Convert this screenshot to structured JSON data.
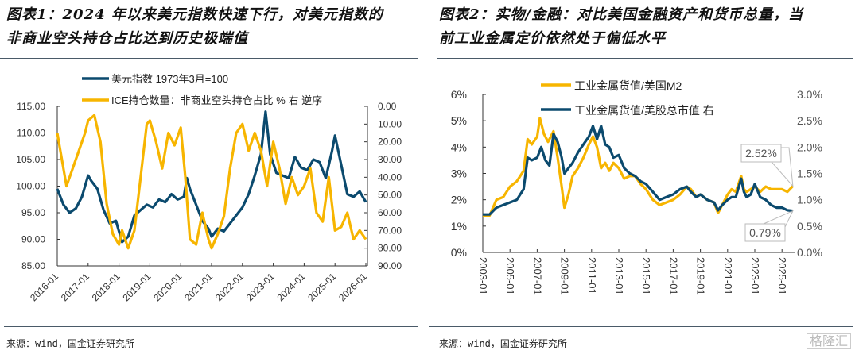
{
  "left_panel": {
    "title_line1": "图表1：2024 年以来美元指数快速下行，对美元指数的",
    "title_line2": "非商业空头持仓占比达到历史极端值",
    "source": "来源：wind，国金证券研究所"
  },
  "right_panel": {
    "title_line1": "图表2：实物/金融：对比美国金融资产和货币总量，当",
    "title_line2": "前工业金属定价依然处于偏低水平",
    "source": "来源：wind，国金证券研究所"
  },
  "watermark": "格隆汇",
  "colors": {
    "navy": "#0b4a6e",
    "gold": "#f7b500",
    "axis": "#333333",
    "callout": "#bbbbbb"
  },
  "chart_data": [
    {
      "type": "line",
      "title": "图表1：2024 年以来美元指数快速下行，对美元指数的非商业空头持仓占比达到历史极端值",
      "x_ticks": [
        "2016-01",
        "2017-01",
        "2018-01",
        "2019-01",
        "2020-01",
        "2021-01",
        "2022-01",
        "2023-01",
        "2024-01",
        "2025-01",
        "2026-01"
      ],
      "x_range": [
        2016.0,
        2026.0
      ],
      "y_left": {
        "range": [
          85,
          115
        ],
        "ticks": [
          "115.00",
          "110.00",
          "105.00",
          "100.00",
          "95.00",
          "90.00",
          "85.00"
        ],
        "tick_values": [
          115,
          110,
          105,
          100,
          95,
          90,
          85
        ]
      },
      "y_right": {
        "range": [
          0,
          90
        ],
        "inverted": true,
        "ticks": [
          "0.00",
          "10.00",
          "20.00",
          "30.00",
          "40.00",
          "50.00",
          "60.00",
          "70.00",
          "80.00",
          "90.00"
        ],
        "tick_values": [
          0,
          10,
          20,
          30,
          40,
          50,
          60,
          70,
          80,
          90
        ]
      },
      "legend_position": "top-left",
      "series": [
        {
          "name": "美元指数 1973年3月=100",
          "axis": "left",
          "color": "#0b4a6e",
          "x": [
            2016.0,
            2016.2,
            2016.4,
            2016.6,
            2016.8,
            2017.0,
            2017.1,
            2017.3,
            2017.5,
            2017.7,
            2017.9,
            2018.1,
            2018.3,
            2018.5,
            2018.7,
            2018.9,
            2019.1,
            2019.3,
            2019.5,
            2019.7,
            2019.9,
            2020.1,
            2020.2,
            2020.3,
            2020.5,
            2020.7,
            2020.9,
            2021.0,
            2021.2,
            2021.4,
            2021.6,
            2021.8,
            2022.0,
            2022.2,
            2022.4,
            2022.6,
            2022.75,
            2022.9,
            2023.1,
            2023.3,
            2023.5,
            2023.7,
            2023.9,
            2024.1,
            2024.3,
            2024.5,
            2024.7,
            2024.9,
            2025.0,
            2025.2,
            2025.4,
            2025.6,
            2025.8,
            2026.0
          ],
          "y": [
            99.5,
            96.5,
            95.0,
            95.8,
            98.0,
            102.0,
            101.0,
            99.5,
            95.5,
            93.0,
            93.5,
            89.5,
            90.5,
            94.5,
            95.5,
            96.5,
            96.0,
            97.5,
            97.0,
            98.5,
            97.5,
            98.0,
            101.5,
            99.5,
            96.5,
            93.5,
            92.0,
            90.5,
            92.0,
            91.5,
            93.0,
            94.5,
            96.0,
            98.5,
            102.0,
            106.0,
            114.0,
            106.0,
            102.5,
            102.0,
            101.5,
            105.5,
            103.5,
            103.0,
            105.0,
            104.5,
            101.5,
            106.5,
            109.5,
            104.0,
            98.5,
            98.0,
            99.0,
            97.0
          ]
        },
        {
          "name": "ICE持仓数量：非商业空头持仓占比 % 右 逆序",
          "axis": "right",
          "color": "#f7b500",
          "x": [
            2016.0,
            2016.15,
            2016.3,
            2016.5,
            2016.7,
            2016.9,
            2017.0,
            2017.2,
            2017.4,
            2017.6,
            2017.8,
            2018.0,
            2018.1,
            2018.3,
            2018.5,
            2018.7,
            2018.9,
            2019.0,
            2019.2,
            2019.4,
            2019.6,
            2019.8,
            2020.0,
            2020.15,
            2020.3,
            2020.5,
            2020.7,
            2020.9,
            2021.0,
            2021.2,
            2021.4,
            2021.6,
            2021.8,
            2022.0,
            2022.2,
            2022.4,
            2022.6,
            2022.8,
            2023.0,
            2023.2,
            2023.4,
            2023.6,
            2023.8,
            2024.0,
            2024.2,
            2024.4,
            2024.6,
            2024.8,
            2025.0,
            2025.2,
            2025.4,
            2025.6,
            2025.8,
            2026.0
          ],
          "y": [
            15,
            30,
            45,
            35,
            25,
            15,
            8,
            5,
            20,
            55,
            72,
            78,
            70,
            80,
            70,
            40,
            10,
            8,
            20,
            35,
            15,
            22,
            12,
            40,
            75,
            78,
            60,
            75,
            80,
            72,
            62,
            35,
            15,
            10,
            25,
            15,
            25,
            45,
            20,
            35,
            55,
            40,
            50,
            45,
            35,
            60,
            65,
            40,
            70,
            68,
            60,
            75,
            70,
            75
          ]
        }
      ]
    },
    {
      "type": "line",
      "title": "图表2：实物/金融：对比美国金融资产和货币总量，当前工业金属定价依然处于偏低水平",
      "x_ticks": [
        "2003-01",
        "2005-01",
        "2007-01",
        "2009-01",
        "2011-01",
        "2013-01",
        "2015-01",
        "2017-01",
        "2019-01",
        "2021-01",
        "2023-01",
        "2025-01"
      ],
      "x_range": [
        2003.0,
        2025.8
      ],
      "y_left": {
        "range": [
          0,
          6
        ],
        "ticks": [
          "6%",
          "5%",
          "4%",
          "3%",
          "2%",
          "1%",
          "0%"
        ],
        "tick_values": [
          6,
          5,
          4,
          3,
          2,
          1,
          0
        ]
      },
      "y_right": {
        "range": [
          0,
          3.0
        ],
        "ticks": [
          "3.0%",
          "2.5%",
          "2.0%",
          "1.5%",
          "1.0%",
          "0.5%",
          "0.0%"
        ],
        "tick_values": [
          3.0,
          2.5,
          2.0,
          1.5,
          1.0,
          0.5,
          0.0
        ]
      },
      "legend_position": "top-left",
      "annotations": [
        {
          "text": "2.52%",
          "series": "工业金属货值/美国M2"
        },
        {
          "text": "0.79%",
          "series": "工业金属货值/美股总市值 右"
        }
      ],
      "series": [
        {
          "name": "工业金属货值/美国M2",
          "axis": "left",
          "color": "#f7b500",
          "x": [
            2003.0,
            2003.5,
            2004.0,
            2004.5,
            2005.0,
            2005.5,
            2006.0,
            2006.3,
            2006.6,
            2007.0,
            2007.2,
            2007.5,
            2007.8,
            2008.2,
            2008.5,
            2008.8,
            2009.0,
            2009.3,
            2009.6,
            2010.0,
            2010.4,
            2010.8,
            2011.1,
            2011.4,
            2011.7,
            2012.0,
            2012.3,
            2012.6,
            2013.0,
            2013.4,
            2013.8,
            2014.2,
            2014.6,
            2015.0,
            2015.5,
            2016.0,
            2016.5,
            2017.0,
            2017.5,
            2018.0,
            2018.3,
            2018.7,
            2019.0,
            2019.5,
            2020.0,
            2020.3,
            2020.6,
            2021.0,
            2021.3,
            2021.6,
            2022.0,
            2022.2,
            2022.4,
            2022.7,
            2023.0,
            2023.4,
            2023.8,
            2024.2,
            2024.6,
            2025.0,
            2025.4,
            2025.8
          ],
          "y": [
            1.4,
            1.4,
            2.0,
            2.1,
            2.5,
            2.7,
            3.1,
            4.3,
            4.1,
            4.4,
            5.1,
            4.5,
            4.2,
            4.6,
            3.6,
            2.5,
            1.7,
            2.2,
            2.9,
            3.2,
            3.6,
            4.1,
            4.4,
            4.0,
            3.2,
            3.4,
            3.1,
            3.4,
            3.2,
            2.8,
            2.9,
            2.9,
            2.6,
            2.4,
            2.0,
            1.8,
            1.9,
            2.0,
            2.2,
            2.5,
            2.4,
            2.1,
            2.2,
            2.0,
            1.9,
            1.5,
            1.8,
            2.2,
            2.4,
            2.3,
            2.9,
            2.4,
            2.3,
            2.4,
            2.5,
            2.3,
            2.5,
            2.4,
            2.4,
            2.4,
            2.3,
            2.52
          ]
        },
        {
          "name": "工业金属货值/美股总市值 右",
          "axis": "right",
          "color": "#0b4a6e",
          "x": [
            2003.0,
            2003.5,
            2004.0,
            2004.5,
            2005.0,
            2005.5,
            2006.0,
            2006.3,
            2006.6,
            2007.0,
            2007.3,
            2007.6,
            2007.9,
            2008.2,
            2008.5,
            2008.8,
            2009.0,
            2009.3,
            2009.6,
            2010.0,
            2010.4,
            2010.8,
            2011.1,
            2011.4,
            2011.7,
            2012.0,
            2012.3,
            2012.6,
            2013.0,
            2013.4,
            2013.8,
            2014.2,
            2014.6,
            2015.0,
            2015.5,
            2016.0,
            2016.5,
            2017.0,
            2017.5,
            2018.0,
            2018.3,
            2018.7,
            2019.0,
            2019.5,
            2020.0,
            2020.3,
            2020.6,
            2021.0,
            2021.3,
            2021.6,
            2022.0,
            2022.2,
            2022.4,
            2022.7,
            2023.0,
            2023.4,
            2023.8,
            2024.2,
            2024.6,
            2025.0,
            2025.4,
            2025.8
          ],
          "y": [
            0.72,
            0.72,
            0.85,
            0.9,
            0.95,
            1.0,
            1.2,
            1.8,
            1.75,
            1.8,
            2.0,
            1.75,
            1.65,
            2.25,
            2.1,
            1.8,
            1.5,
            1.6,
            1.7,
            1.9,
            2.05,
            2.2,
            2.4,
            2.15,
            2.4,
            2.05,
            2.0,
            1.8,
            1.85,
            1.6,
            1.5,
            1.45,
            1.35,
            1.3,
            1.15,
            1.0,
            1.05,
            1.1,
            1.2,
            1.25,
            1.15,
            1.05,
            1.1,
            1.0,
            0.95,
            0.8,
            0.9,
            1.0,
            1.05,
            1.05,
            1.4,
            1.15,
            1.05,
            1.1,
            1.3,
            1.05,
            1.0,
            0.9,
            0.85,
            0.85,
            0.8,
            0.79
          ]
        }
      ]
    }
  ]
}
